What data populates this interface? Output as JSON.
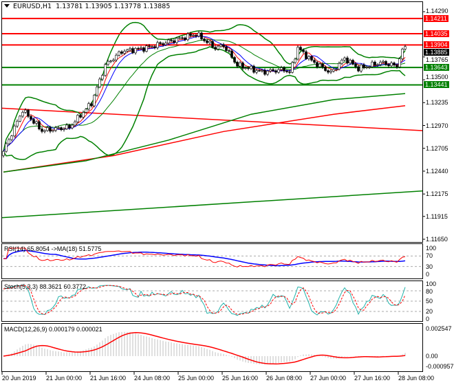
{
  "header": {
    "symbol": "EURUSD,H1",
    "open": "1.13781",
    "high": "1.13905",
    "low": "1.13778",
    "close": "1.13885"
  },
  "colors": {
    "bull": "#ffffff",
    "bear": "#000000",
    "level_red": "#ff0000",
    "level_green": "#008000",
    "bands": "#008000",
    "ma_fast": "#ff0000",
    "ma_mid": "#0000ff",
    "rsi": "#ff0000",
    "rsi_ma": "#0000ff",
    "stoch_main": "#20b2aa",
    "stoch_signal": "#ff0000",
    "macd_hist": "#c0c0c0",
    "macd_signal": "#ff0000"
  },
  "chart_data": {
    "type": "candlestick",
    "timeframe": "H1",
    "price_axis": {
      "ticks": [
        "1.14290",
        "1.13765",
        "1.13500",
        "1.13235",
        "1.12970",
        "1.12705",
        "1.12440",
        "1.12175",
        "1.11915",
        "1.11650"
      ],
      "range": [
        1.1165,
        1.1429
      ]
    },
    "time_axis": {
      "ticks": [
        "20 Jun 2019",
        "21 Jun 00:00",
        "21 Jun 16:00",
        "24 Jun 08:00",
        "25 Jun 00:00",
        "25 Jun 16:00",
        "26 Jun 08:00",
        "27 Jun 00:00",
        "27 Jun 16:00",
        "28 Jun 08:00"
      ],
      "bars_between_ticks": 16
    },
    "close_keypoints": [
      [
        0,
        1.1267
      ],
      [
        7,
        1.1315
      ],
      [
        14,
        1.1291
      ],
      [
        24,
        1.1295
      ],
      [
        32,
        1.1323
      ],
      [
        37,
        1.1367
      ],
      [
        43,
        1.1383
      ],
      [
        52,
        1.1387
      ],
      [
        62,
        1.1396
      ],
      [
        70,
        1.1403
      ],
      [
        77,
        1.1387
      ],
      [
        80,
        1.139
      ],
      [
        85,
        1.1367
      ],
      [
        94,
        1.1359
      ],
      [
        102,
        1.1362
      ],
      [
        104,
        1.1358
      ],
      [
        107,
        1.1387
      ],
      [
        112,
        1.1372
      ],
      [
        119,
        1.1358
      ],
      [
        124,
        1.1375
      ],
      [
        129,
        1.1363
      ],
      [
        137,
        1.137
      ],
      [
        143,
        1.1366
      ],
      [
        144,
        1.1376
      ],
      [
        146,
        1.13885
      ]
    ],
    "levels": [
      {
        "price": "1.14211",
        "color": "red"
      },
      {
        "price": "1.14035",
        "color": "red"
      },
      {
        "price": "1.13904",
        "color": "red"
      },
      {
        "price": "1.13643",
        "color": "green"
      },
      {
        "price": "1.13441",
        "color": "green"
      }
    ],
    "long_ma": [
      {
        "color": "red",
        "points": [
          [
            0,
            1.1243
          ],
          [
            40,
            1.1262
          ],
          [
            80,
            1.129
          ],
          [
            120,
            1.131
          ],
          [
            146,
            1.132
          ]
        ]
      },
      {
        "color": "green",
        "points": [
          [
            0,
            1.1243
          ],
          [
            30,
            1.1256
          ],
          [
            60,
            1.128
          ],
          [
            90,
            1.131
          ],
          [
            120,
            1.1327
          ],
          [
            146,
            1.1334
          ]
        ]
      }
    ],
    "trendlines": [
      {
        "color": "red",
        "from": [
          0,
          1.1317
        ],
        "to": [
          153,
          1.1291
        ]
      },
      {
        "color": "green",
        "from": [
          0,
          1.119
        ],
        "to": [
          153,
          1.1221
        ]
      }
    ],
    "rsi": {
      "label": "RSI(14) 65.8054  ->MA(18) 51.5775",
      "ticks": [
        "100",
        "70",
        "30",
        "0"
      ]
    },
    "stoch": {
      "label": "Stoch(5,3,3) 88.3621 60.3772",
      "ticks": [
        "100",
        "80",
        "50",
        "20",
        "0"
      ]
    },
    "macd": {
      "label": "MACD(12,26,9) 0.000179 0.000021",
      "ticks": [
        "0.002547",
        "0.00",
        "-0.000957"
      ],
      "range": [
        -0.000957,
        0.002547
      ]
    }
  }
}
